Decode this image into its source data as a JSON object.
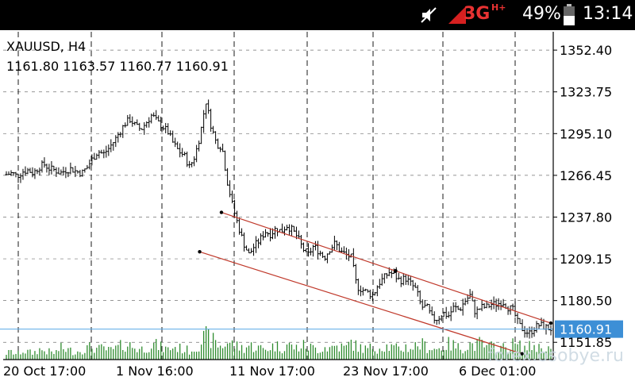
{
  "status_bar": {
    "network": "3G",
    "network_sup": "H+",
    "battery": "49%",
    "time": "13:14",
    "icons": [
      "mute-icon",
      "signal-icon",
      "battery-icon"
    ]
  },
  "chart_header": {
    "symbol": "XAUUSD, H4",
    "ohlc": "1161.80 1163.57 1160.77 1160.91"
  },
  "watermark": "forex.osobye.ru",
  "colors": {
    "price": "#000000",
    "volume": "#2e8b2e",
    "current_price_line": "#5aa9e6",
    "current_price_badge": "#3d8fd6",
    "channel": "#c0392b",
    "grid": "#000000"
  },
  "chart_data": {
    "type": "ohlc",
    "title": "XAUUSD, H4",
    "ylim": [
      1140,
      1365
    ],
    "y_ticks": [
      "1352.40",
      "1323.75",
      "1295.10",
      "1266.45",
      "1237.80",
      "1209.15",
      "1180.50",
      "1151.85"
    ],
    "x_ticks": [
      "20 Oct 17:00",
      "1 Nov 16:00",
      "11 Nov 17:00",
      "23 Nov 17:00",
      "6 Dec 01:00"
    ],
    "current_price": "1160.91",
    "grid": true,
    "close_path": [
      1267,
      1268,
      1266,
      1269,
      1270,
      1268,
      1272,
      1274,
      1271,
      1270,
      1268,
      1270,
      1271,
      1269,
      1268,
      1272,
      1278,
      1283,
      1281,
      1285,
      1290,
      1296,
      1302,
      1305,
      1300,
      1298,
      1303,
      1308,
      1303,
      1300,
      1296,
      1288,
      1283,
      1280,
      1272,
      1280,
      1295,
      1318,
      1300,
      1288,
      1286,
      1262,
      1245,
      1232,
      1220,
      1212,
      1218,
      1222,
      1228,
      1226,
      1230,
      1228,
      1232,
      1229,
      1224,
      1216,
      1212,
      1218,
      1214,
      1210,
      1216,
      1220,
      1214,
      1212,
      1210,
      1190,
      1188,
      1186,
      1184,
      1192,
      1196,
      1200,
      1198,
      1194,
      1196,
      1192,
      1188,
      1176,
      1176,
      1168,
      1168,
      1172,
      1170,
      1176,
      1174,
      1180,
      1184,
      1172,
      1176,
      1176,
      1178,
      1178,
      1180,
      1176,
      1174,
      1164,
      1160,
      1158,
      1162,
      1164,
      1162,
      1161
    ],
    "volume_path": [
      5,
      6,
      4,
      7,
      6,
      5,
      8,
      7,
      6,
      5,
      9,
      8,
      7,
      6,
      8,
      9,
      10,
      8,
      9,
      7,
      8,
      10,
      12,
      11,
      9,
      8,
      10,
      12,
      11,
      9,
      8,
      10,
      9,
      8,
      7,
      9,
      14,
      18,
      16,
      12,
      10,
      14,
      12,
      10,
      9,
      11,
      10,
      9,
      8,
      10,
      11,
      9,
      12,
      10,
      9,
      11,
      10,
      9,
      8,
      10,
      9,
      11,
      10,
      9,
      14,
      10,
      9,
      8,
      10,
      9,
      11,
      10,
      9,
      8,
      10,
      9,
      11,
      12,
      10,
      9,
      8,
      10,
      12,
      11,
      9,
      10,
      12,
      11,
      13,
      9,
      10,
      11,
      9,
      10,
      12,
      11,
      9,
      10,
      11,
      9,
      10,
      8
    ],
    "channel_upper": {
      "start": [
        0.395,
        1241
      ],
      "end": [
        1.0,
        1165
      ]
    },
    "channel_lower": {
      "start": [
        0.355,
        1214
      ],
      "end": [
        0.947,
        1144
      ]
    },
    "channel_anchor": [
      0.715,
      1201
    ]
  }
}
